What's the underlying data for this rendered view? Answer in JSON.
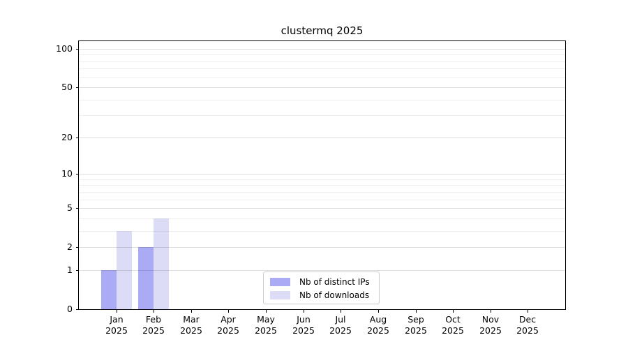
{
  "chart_data": {
    "type": "bar",
    "title": "clustermq 2025",
    "categories": [
      "Jan",
      "Feb",
      "Mar",
      "Apr",
      "May",
      "Jun",
      "Jul",
      "Aug",
      "Sep",
      "Oct",
      "Nov",
      "Dec"
    ],
    "year": "2025",
    "series": [
      {
        "name": "Nb of distinct IPs",
        "color": "#aaaaf5",
        "values": [
          1,
          2,
          0,
          0,
          0,
          0,
          0,
          0,
          0,
          0,
          0,
          0
        ]
      },
      {
        "name": "Nb of downloads",
        "color": "#dcdcf7",
        "values": [
          3,
          4,
          0,
          0,
          0,
          0,
          0,
          0,
          0,
          0,
          0,
          0
        ]
      }
    ],
    "y_axis": {
      "scale": "log1p",
      "ylim": [
        0,
        100
      ],
      "ticks": [
        0,
        1,
        2,
        5,
        10,
        20,
        50,
        100
      ],
      "minor_gridlines": [
        3,
        4,
        6,
        7,
        8,
        9,
        30,
        40,
        60,
        70,
        80,
        90
      ]
    },
    "legend": {
      "position": "lower center"
    },
    "grid": "on",
    "colors": {
      "grid_major": "rgba(0,0,0,0.13)",
      "grid_minor": "rgba(0,0,0,0.06)",
      "axis": "#000000",
      "background": "#ffffff",
      "text": "#000000"
    }
  }
}
